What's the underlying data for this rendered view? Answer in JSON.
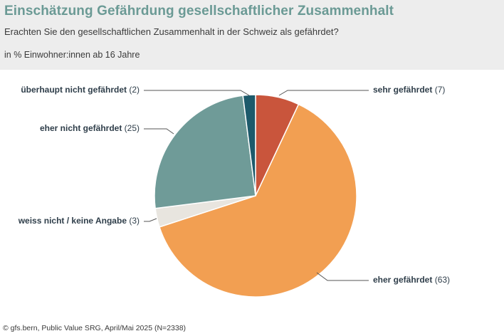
{
  "header": {
    "title": "Einschätzung Gefährdung gesellschaftlicher Zusammenhalt",
    "subtitle": "Erachten Sie den gesellschaftlichen Zusammenhalt in der Schweiz als gefährdet?",
    "unit": "in % Einwohner:innen ab 16 Jahre"
  },
  "source": "© gfs.bern, Public Value SRG, April/Mai 2025 (N=2338)",
  "chart_data": {
    "type": "pie",
    "title": "Einschätzung Gefährdung gesellschaftlicher Zusammenhalt",
    "slices": [
      {
        "label": "sehr gefährdet",
        "value": 7,
        "color": "#c9553c"
      },
      {
        "label": "eher gefährdet",
        "value": 63,
        "color": "#f29f52"
      },
      {
        "label": "weiss nicht / keine Angabe",
        "value": 3,
        "color": "#e8e5df"
      },
      {
        "label": "eher nicht gefährdet",
        "value": 25,
        "color": "#6f9b98"
      },
      {
        "label": "überhaupt nicht gefährdet",
        "value": 2,
        "color": "#1d5a6b"
      }
    ]
  }
}
